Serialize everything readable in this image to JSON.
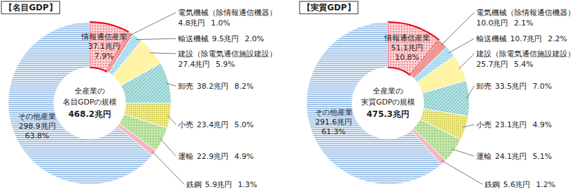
{
  "chart_data": [
    {
      "type": "pie",
      "title": "【名目GDP】",
      "center_label": [
        "全産業の",
        "名目GDPの規模",
        "468.2兆円"
      ],
      "categories": [
        "情報通信産業",
        "電気機械（除情報通信機器）",
        "輸送機械",
        "建設（除電気通信施設建設）",
        "卸売",
        "小売",
        "運輸",
        "鉄鋼",
        "その他産業"
      ],
      "values": [
        37.1,
        4.8,
        9.5,
        27.4,
        38.2,
        23.4,
        22.9,
        5.9,
        298.9
      ],
      "value_labels": [
        "37.1兆円",
        "4.8兆円",
        "9.5兆円",
        "27.4兆円",
        "38.2兆円",
        "23.4兆円",
        "22.9兆円",
        "5.9兆円",
        "298.9兆円"
      ],
      "percentages": [
        7.9,
        1.0,
        2.0,
        5.9,
        8.2,
        5.0,
        4.9,
        1.3,
        63.8
      ],
      "percentage_labels": [
        "7.9%",
        "1.0%",
        "2.0%",
        "5.9%",
        "8.2%",
        "5.0%",
        "4.9%",
        "1.3%",
        "63.8%"
      ],
      "colors": [
        "#f9d3d3",
        "#f4a8a8",
        "#a8dcf2",
        "#fff3a6",
        "#b3e2e2",
        "#f0ec8a",
        "#c4e6a8",
        "#f4b6c2",
        "#a3c4ea"
      ],
      "data_labels": true
    },
    {
      "type": "pie",
      "title": "【実質GDP】",
      "center_label": [
        "全産業の",
        "実質GDPの規模",
        "475.3兆円"
      ],
      "categories": [
        "情報通信産業",
        "電気機械（除情報通信機器）",
        "輸送機械",
        "建設（除電気通信施設建設）",
        "卸売",
        "小売",
        "運輸",
        "鉄鋼",
        "その他産業"
      ],
      "values": [
        51.1,
        10.0,
        10.7,
        25.7,
        33.5,
        23.1,
        24.1,
        5.6,
        291.6
      ],
      "value_labels": [
        "51.1兆円",
        "10.0兆円",
        "10.7兆円",
        "25.7兆円",
        "33.5兆円",
        "23.1兆円",
        "24.1兆円",
        "5.6兆円",
        "291.6兆円"
      ],
      "percentages": [
        10.8,
        2.1,
        2.2,
        5.4,
        7.0,
        4.9,
        5.1,
        1.2,
        61.3
      ],
      "percentage_labels": [
        "10.8%",
        "2.1%",
        "2.2%",
        "5.4%",
        "7.0%",
        "4.9%",
        "5.1%",
        "1.2%",
        "61.3%"
      ],
      "colors": [
        "#f9d3d3",
        "#f4a8a8",
        "#a8dcf2",
        "#fff3a6",
        "#b3e2e2",
        "#f0ec8a",
        "#c4e6a8",
        "#f4b6c2",
        "#a3c4ea"
      ],
      "data_labels": true
    }
  ]
}
